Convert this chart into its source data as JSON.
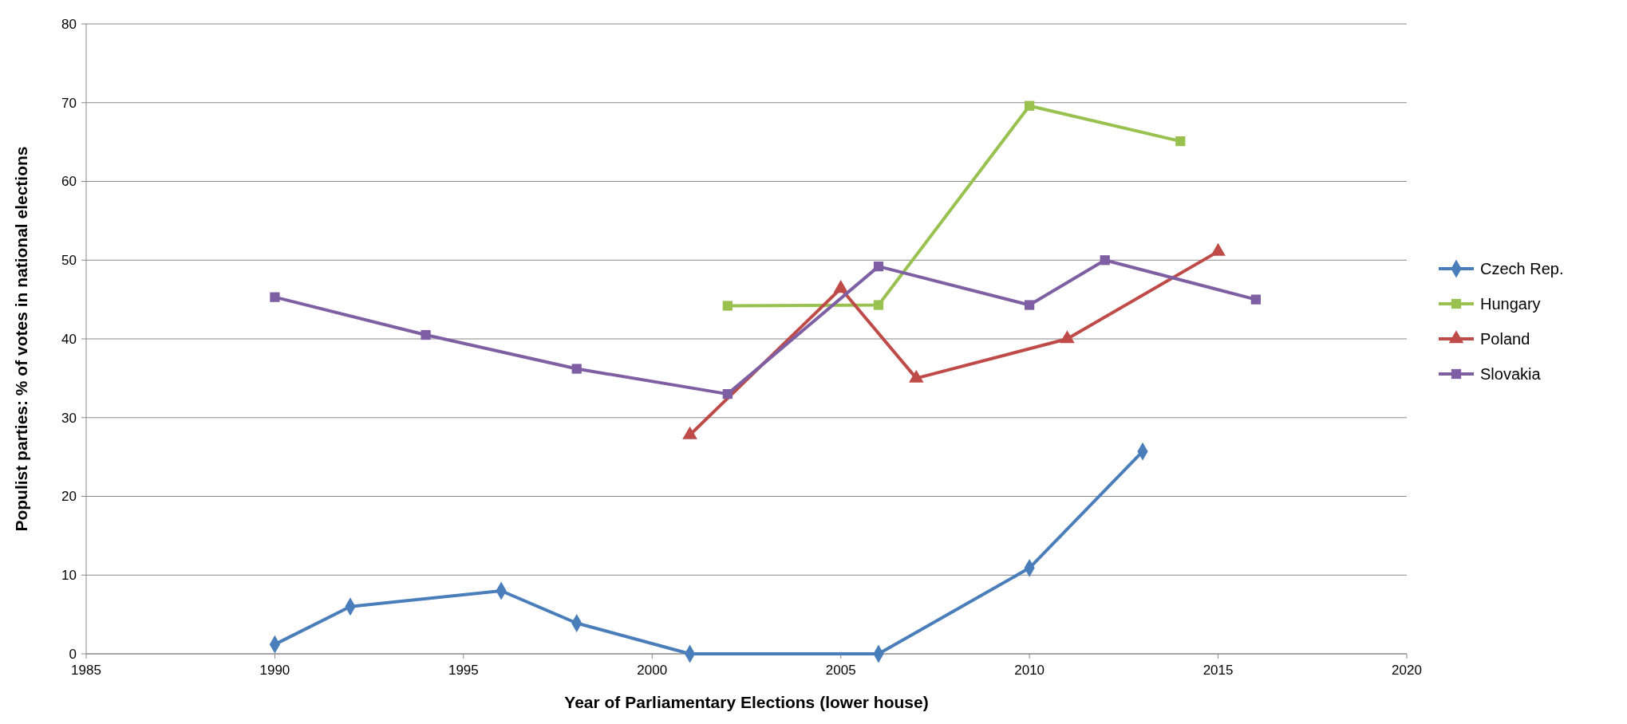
{
  "chart_data": {
    "type": "line",
    "xlabel": "Year of Parliamentary Elections (lower house)",
    "ylabel": "Populist parties: % of votes in national elections",
    "xlim": [
      1985,
      2020
    ],
    "xticks": [
      1985,
      1990,
      1995,
      2000,
      2005,
      2010,
      2015,
      2020
    ],
    "ylim": [
      0,
      80
    ],
    "yticks": [
      0,
      10,
      20,
      30,
      40,
      50,
      60,
      70,
      80
    ],
    "grid": "y",
    "legend": "right",
    "line_style": "solid",
    "series": [
      {
        "name": "Czech Rep.",
        "color": "#4a7ebb",
        "marker": "diamond",
        "x": [
          1990,
          1992,
          1996,
          1998,
          2001,
          2006,
          2010,
          2013
        ],
        "values": [
          1.2,
          6.0,
          8.0,
          3.9,
          0,
          0,
          10.9,
          25.7
        ]
      },
      {
        "name": "Hungary",
        "color": "#98c14f",
        "marker": "square",
        "x": [
          2002,
          2006,
          2010,
          2014
        ],
        "values": [
          44.2,
          44.3,
          69.6,
          65.1
        ]
      },
      {
        "name": "Poland",
        "color": "#be4b48",
        "marker": "triangle",
        "x": [
          2001,
          2005,
          2007,
          2011,
          2015
        ],
        "values": [
          27.8,
          46.4,
          35.0,
          40.0,
          51.1
        ]
      },
      {
        "name": "Slovakia",
        "color": "#7f5fa3",
        "marker": "square",
        "x": [
          1990,
          1994,
          1998,
          2002,
          2006,
          2010,
          2012,
          2016
        ],
        "values": [
          45.3,
          40.5,
          36.2,
          33.0,
          49.2,
          44.3,
          50.0,
          45.0
        ]
      }
    ]
  }
}
